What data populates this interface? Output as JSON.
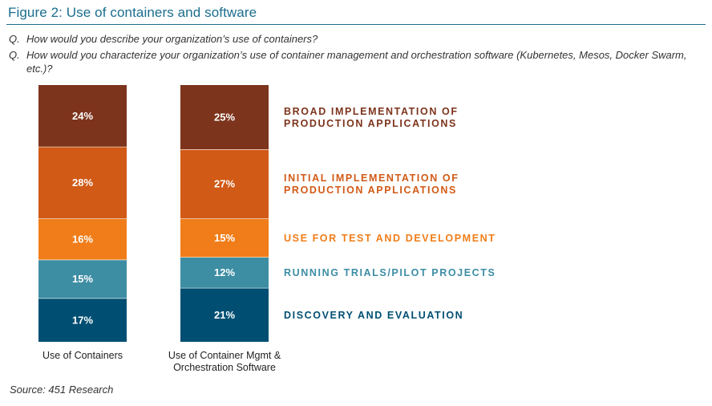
{
  "figure": {
    "title": "Figure 2: Use of containers and software",
    "questions": [
      {
        "prefix": "Q.",
        "text": "How would you describe your organization’s use of containers?"
      },
      {
        "prefix": "Q.",
        "text": "How would you characterize your organization’s use of container management and orchestration software (Kubernetes, Mesos, Docker Swarm, etc.)?"
      }
    ],
    "source": "Source: 451 Research"
  },
  "chart_data": {
    "type": "bar",
    "stacked": true,
    "normalized": true,
    "categories": [
      "Use of Containers",
      "Use of Container Mgmt & Orchestration Software"
    ],
    "series": [
      {
        "name": "DISCOVERY AND EVALUATION",
        "values": [
          17,
          21
        ],
        "labels": [
          "17%",
          "21%"
        ],
        "color": "#004f73"
      },
      {
        "name": "RUNNING TRIALS/PILOT PROJECTS",
        "values": [
          15,
          12
        ],
        "labels": [
          "15%",
          "12%"
        ],
        "color": "#3d8da3"
      },
      {
        "name": "USE FOR TEST AND DEVELOPMENT",
        "values": [
          16,
          15
        ],
        "labels": [
          "16%",
          "15%"
        ],
        "color": "#f07d19"
      },
      {
        "name": "INITIAL IMPLEMENTATION OF PRODUCTION APPLICATIONS",
        "values": [
          28,
          27
        ],
        "labels": [
          "28%",
          "27%"
        ],
        "color": "#d15a16"
      },
      {
        "name": "BROAD IMPLEMENTATION OF PRODUCTION APPLICATIONS",
        "values": [
          24,
          25
        ],
        "labels": [
          "24%",
          "25%"
        ],
        "color": "#7d341c"
      }
    ],
    "legend_placement": "right",
    "grid": false,
    "xlabel": "",
    "ylabel": ""
  }
}
